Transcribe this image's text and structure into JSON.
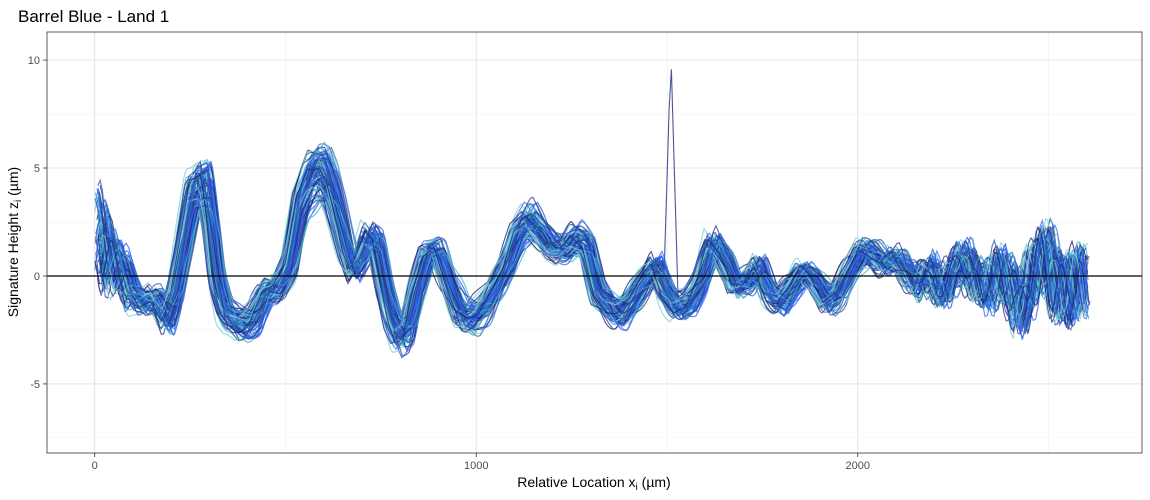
{
  "chart_data": {
    "type": "line",
    "title": "Barrel Blue - Land 1",
    "xlabel": "Relative Location x",
    "xlabel_sub": "i",
    "xlabel_unit": " (µm)",
    "ylabel": "Signature Height z",
    "ylabel_sub": "i",
    "ylabel_unit": " (µm)",
    "xlim": [
      -125,
      2745
    ],
    "ylim": [
      -8.2,
      11.3
    ],
    "x_ticks": [
      0,
      1000,
      2000
    ],
    "x_tick_labels": [
      "0",
      "1000",
      "2000"
    ],
    "y_ticks": [
      -5,
      0,
      5,
      10
    ],
    "y_tick_labels": [
      "-5",
      "0",
      "5",
      "10"
    ],
    "grid": true,
    "legend": "none",
    "reference_line_y": 0,
    "series_colors": [
      "#7FCDCD",
      "#41B6C4",
      "#3A6FE8",
      "#2B59F0",
      "#225EA8",
      "#1B2A80",
      "#3A3A8C"
    ],
    "mean_profile": {
      "x": [
        0,
        20,
        40,
        60,
        80,
        100,
        130,
        160,
        190,
        210,
        230,
        260,
        290,
        305,
        320,
        340,
        360,
        390,
        420,
        450,
        480,
        510,
        540,
        570,
        600,
        620,
        640,
        660,
        680,
        700,
        720,
        740,
        760,
        780,
        800,
        820,
        840,
        870,
        900,
        930,
        960,
        990,
        1020,
        1050,
        1080,
        1110,
        1140,
        1170,
        1200,
        1230,
        1260,
        1290,
        1320,
        1350,
        1380,
        1410,
        1440,
        1470,
        1500,
        1530,
        1560,
        1590,
        1620,
        1650,
        1680,
        1710,
        1740,
        1770,
        1800,
        1830,
        1860,
        1890,
        1920,
        1950,
        1980,
        2010,
        2040,
        2070,
        2100,
        2130,
        2160,
        2190,
        2220,
        2250,
        2280,
        2310,
        2340,
        2370,
        2400,
        2430,
        2460,
        2490,
        2520,
        2550,
        2580,
        2610
      ],
      "y": [
        2.5,
        1.5,
        0.8,
        0.5,
        0.2,
        -0.8,
        -1.2,
        -1.0,
        -2.0,
        -1.0,
        1.0,
        4.0,
        4.3,
        2.5,
        0.0,
        -1.5,
        -2.0,
        -2.3,
        -2.0,
        -0.8,
        -0.6,
        0.3,
        3.5,
        4.8,
        5.0,
        4.2,
        2.8,
        1.2,
        0.2,
        0.8,
        1.8,
        1.5,
        -0.5,
        -2.0,
        -2.8,
        -2.5,
        -0.8,
        1.0,
        1.2,
        -0.5,
        -1.8,
        -2.0,
        -1.5,
        -0.5,
        0.5,
        2.0,
        2.6,
        2.0,
        1.3,
        1.2,
        1.8,
        1.5,
        -0.8,
        -1.5,
        -1.8,
        -1.2,
        -0.3,
        0.5,
        -0.8,
        -1.5,
        -1.2,
        -0.2,
        1.5,
        0.8,
        -0.5,
        -0.3,
        0.5,
        -0.8,
        -1.2,
        -0.5,
        0.3,
        -0.3,
        -1.2,
        -0.8,
        0.3,
        1.2,
        1.0,
        0.5,
        0.8,
        0.2,
        -0.5,
        0.5,
        -0.8,
        0.3,
        0.8,
        -0.2,
        -0.8,
        0.3,
        -0.5,
        -1.5,
        0.2,
        1.2,
        -0.5,
        -0.8,
        -0.2,
        -0.5
      ]
    },
    "n_series": 90,
    "outlier_spike": {
      "x": 1510,
      "y": 10.5
    }
  }
}
